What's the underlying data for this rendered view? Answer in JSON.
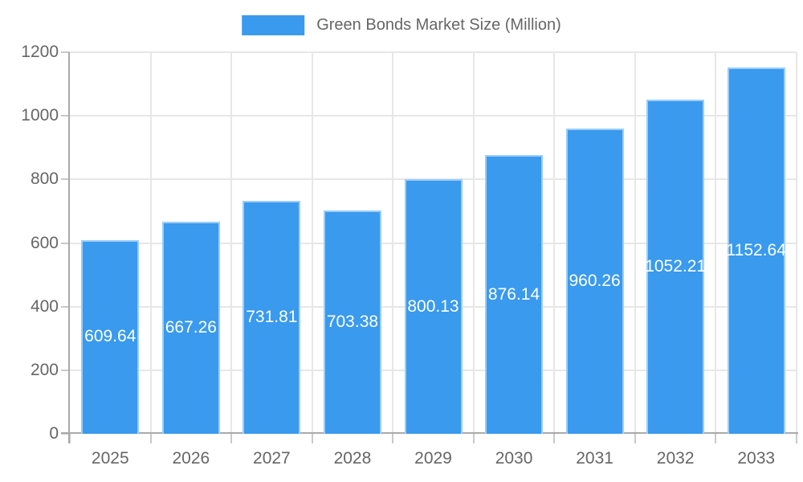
{
  "legend": {
    "label": "Green Bonds Market Size (Million)"
  },
  "chart_data": {
    "type": "bar",
    "title": "Green Bonds Market Size (Million)",
    "categories": [
      "2025",
      "2026",
      "2027",
      "2028",
      "2029",
      "2030",
      "2031",
      "2032",
      "2033"
    ],
    "values": [
      609.64,
      667.26,
      731.81,
      703.38,
      800.13,
      876.14,
      960.26,
      1052.21,
      1152.64
    ],
    "value_labels": [
      "609.64",
      "667.26",
      "731.81",
      "703.38",
      "800.13",
      "876.14",
      "960.26",
      "1052.21",
      "1152.64"
    ],
    "xlabel": "",
    "ylabel": "",
    "ylim": [
      0,
      1200
    ],
    "yticks": [
      0,
      200,
      400,
      600,
      800,
      1000,
      1200
    ],
    "grid": true,
    "legend_position": "top",
    "colors": {
      "bar": "#399aee",
      "bar_border": "#9ccdf7",
      "value_label": "#ffffff",
      "axis_text": "#666666",
      "grid_line": "#e7e7e7",
      "tick_mark": "#c9c9c9",
      "axis_line": "#aaaaaa"
    }
  }
}
